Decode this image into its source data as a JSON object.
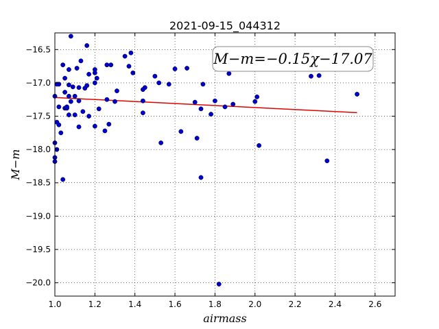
{
  "chart_data": {
    "type": "scatter",
    "title": "2021-09-15_044312",
    "xlabel": "airmass",
    "ylabel": "M−m",
    "xlim": [
      1.0,
      2.7
    ],
    "ylim": [
      -20.2,
      -16.25
    ],
    "y_inverted": true,
    "grid": true,
    "xticks": [
      1.0,
      1.2,
      1.4,
      1.6,
      1.8,
      2.0,
      2.2,
      2.4,
      2.6
    ],
    "xtick_labels": [
      "1.0",
      "1.2",
      "1.4",
      "1.6",
      "1.8",
      "2.0",
      "2.2",
      "2.4",
      "2.6"
    ],
    "yticks": [
      -16.5,
      -17.0,
      -17.5,
      -18.0,
      -18.5,
      -19.0,
      -19.5,
      -20.0
    ],
    "ytick_labels": [
      "−16.5",
      "−17.0",
      "−17.5",
      "−18.0",
      "−18.5",
      "−19.0",
      "−19.5",
      "−20.0"
    ],
    "annotation": "M−m=−0.15χ−17.07",
    "fit_line": {
      "slope": -0.15,
      "intercept": -17.07,
      "x_range": [
        1.0,
        2.51
      ],
      "color": "#e00000"
    },
    "marker_color": "#0000cc",
    "series": [
      {
        "x": [
          1.08,
          1.16,
          1.38,
          1.35,
          1.26,
          1.13,
          1.28,
          1.04,
          1.07,
          1.2,
          1.37,
          1.6,
          1.66,
          1.05,
          1.11,
          1.2,
          1.17,
          1.21,
          1.39,
          1.5,
          1.02,
          1.01,
          1.07,
          1.09,
          1.12,
          1.15,
          1.16,
          1.2,
          1.45,
          1.44,
          1.52,
          1.57,
          1.74,
          1.87,
          2.28,
          2.32,
          2.51,
          2.01,
          1.05,
          1.07,
          1.1,
          1.31,
          1.08,
          1.26,
          1.44,
          1.7,
          1.8,
          1.85,
          1.89,
          2.0,
          1.0,
          1.02,
          1.05,
          1.06,
          1.06,
          1.12,
          1.22,
          1.3,
          1.07,
          1.17,
          1.14,
          1.1,
          1.44,
          1.78,
          1.73,
          1.01,
          1.02,
          1.27,
          1.2,
          1.12,
          1.25,
          1.03,
          1.53,
          1.71,
          1.63,
          1.0,
          1.01,
          1.0,
          1.0,
          2.02,
          2.36,
          1.73,
          1.04,
          1.82
        ],
        "y": [
          -16.3,
          -16.44,
          -16.55,
          -16.6,
          -16.73,
          -16.67,
          -16.73,
          -16.73,
          -16.8,
          -16.8,
          -16.75,
          -16.79,
          -16.78,
          -16.93,
          -16.78,
          -16.85,
          -16.87,
          -16.93,
          -16.85,
          -16.9,
          -17.02,
          -17.02,
          -17.03,
          -17.06,
          -17.07,
          -17.08,
          -17.04,
          -17.0,
          -17.07,
          -17.1,
          -17.0,
          -17.02,
          -17.02,
          -16.86,
          -16.9,
          -16.89,
          -17.17,
          -17.21,
          -17.14,
          -17.2,
          -17.2,
          -17.12,
          -17.28,
          -17.25,
          -17.27,
          -17.29,
          -17.27,
          -17.36,
          -17.32,
          -17.28,
          -17.2,
          -17.36,
          -17.38,
          -17.38,
          -17.36,
          -17.27,
          -17.39,
          -17.28,
          -17.48,
          -17.5,
          -17.43,
          -17.48,
          -17.45,
          -17.47,
          -17.39,
          -17.59,
          -17.63,
          -17.62,
          -17.65,
          -17.66,
          -17.72,
          -17.75,
          -17.9,
          -17.83,
          -17.73,
          -17.9,
          -18.0,
          -18.12,
          -18.18,
          -17.94,
          -18.17,
          -18.42,
          -18.45,
          -20.02
        ]
      }
    ]
  }
}
